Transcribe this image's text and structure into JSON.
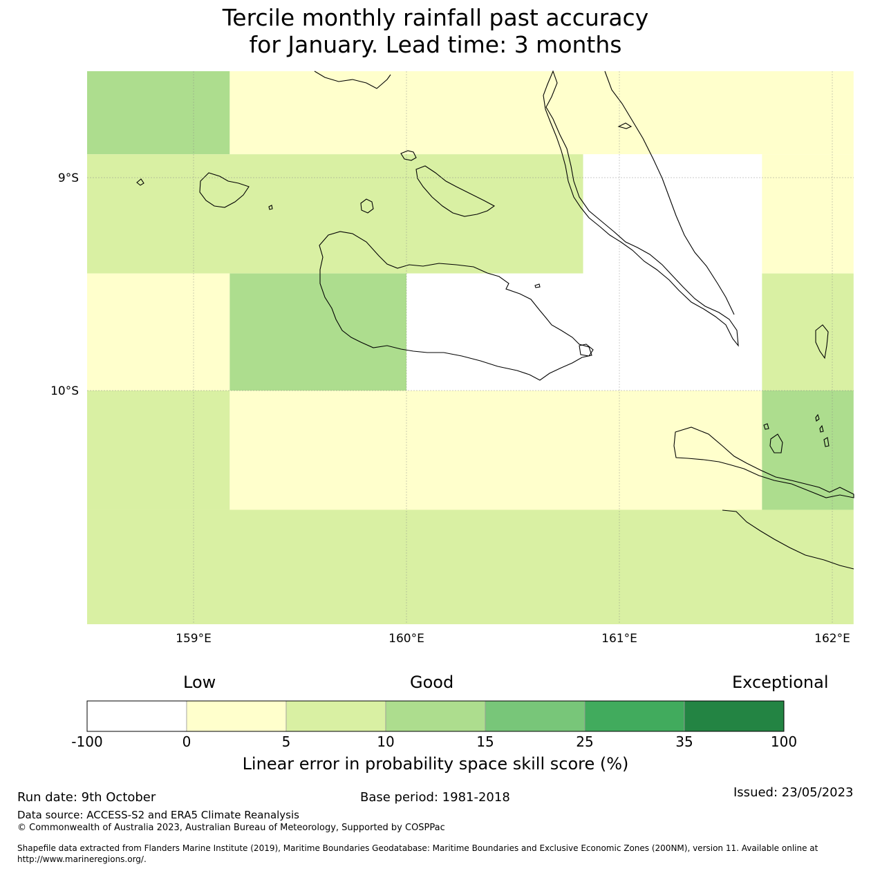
{
  "title": {
    "line1": "Tercile monthly rainfall past accuracy",
    "line2": "for January. Lead time: 3 months"
  },
  "map": {
    "lon_labels": [
      "159°E",
      "160°E",
      "161°E",
      "162°E"
    ],
    "lat_labels": [
      "9°S",
      "10°S"
    ],
    "lon_ticks": [
      159,
      160,
      161,
      162
    ],
    "lat_ticks": [
      -9,
      -10
    ],
    "extent": {
      "lon_min": 158.5,
      "lon_max": 162.1,
      "lat_min": -11.1,
      "lat_max": -8.5
    },
    "cells": [
      {
        "lon0": 158.5,
        "lon1": 159.17,
        "lat0": -8.5,
        "lat1": -8.89,
        "value": 12
      },
      {
        "lon0": 159.17,
        "lon1": 162.1,
        "lat0": -8.5,
        "lat1": -8.89,
        "value": 2
      },
      {
        "lon0": 158.5,
        "lon1": 160.83,
        "lat0": -8.89,
        "lat1": -9.45,
        "value": 7
      },
      {
        "lon0": 160.83,
        "lon1": 161.67,
        "lat0": -8.89,
        "lat1": -9.45,
        "value": -10
      },
      {
        "lon0": 161.67,
        "lon1": 162.1,
        "lat0": -8.89,
        "lat1": -9.45,
        "value": 2
      },
      {
        "lon0": 158.5,
        "lon1": 159.17,
        "lat0": -9.45,
        "lat1": -10.0,
        "value": 2
      },
      {
        "lon0": 159.17,
        "lon1": 160.0,
        "lat0": -9.45,
        "lat1": -10.0,
        "value": 12
      },
      {
        "lon0": 160.0,
        "lon1": 161.67,
        "lat0": -9.45,
        "lat1": -10.0,
        "value": -10
      },
      {
        "lon0": 161.67,
        "lon1": 162.1,
        "lat0": -9.45,
        "lat1": -10.0,
        "value": 7
      },
      {
        "lon0": 158.5,
        "lon1": 159.17,
        "lat0": -10.0,
        "lat1": -10.56,
        "value": 7
      },
      {
        "lon0": 159.17,
        "lon1": 161.67,
        "lat0": -10.0,
        "lat1": -10.56,
        "value": 2
      },
      {
        "lon0": 161.67,
        "lon1": 162.1,
        "lat0": -10.0,
        "lat1": -10.56,
        "value": 12
      },
      {
        "lon0": 158.5,
        "lon1": 162.1,
        "lat0": -10.56,
        "lat1": -11.1,
        "value": 7
      }
    ]
  },
  "colorbar": {
    "headings": {
      "low": "Low",
      "good": "Good",
      "exceptional": "Exceptional"
    },
    "tick_labels": [
      "-100",
      "0",
      "5",
      "10",
      "15",
      "25",
      "35",
      "100"
    ],
    "colors": [
      "#ffffff",
      "#ffffcc",
      "#d9f0a3",
      "#addd8e",
      "#78c679",
      "#41ab5d",
      "#238443"
    ],
    "label": "Linear error in probability space skill score (%)"
  },
  "footer": {
    "run_date": "Run date: 9th October",
    "base_period": "Base period: 1981-2018",
    "issued": "Issued: 23/05/2023",
    "data_source": "Data source: ACCESS-S2 and ERA5 Climate Reanalysis",
    "copyright": "© Commonwealth of Australia 2023, Australian Bureau of Meteorology, Supported by COSPPac",
    "shapefile_line1": "Shapefile data extracted from Flanders Marine Institute (2019), Maritime Boundaries Geodatabase: Maritime Boundaries and Exclusive Economic Zones (200NM), version 11. Available online at",
    "shapefile_line2": "http://www.marineregions.org/."
  }
}
